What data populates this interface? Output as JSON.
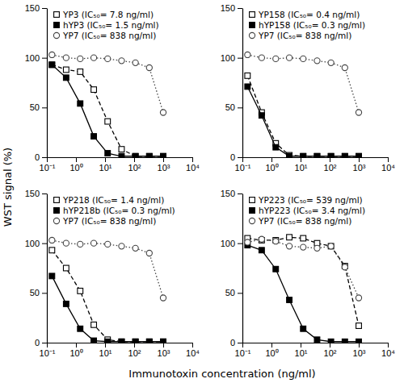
{
  "figure": {
    "xlabel": "Immunotoxin concentration (ng/ml)",
    "ylabel": "WST signal (%)"
  },
  "chart_data": [
    {
      "type": "line",
      "log": "x",
      "legend": "top-left",
      "xlim": [
        0.1,
        10000
      ],
      "ylim": [
        0,
        150
      ],
      "xticks": [
        {
          "value": 0.1,
          "label": "10⁻¹"
        },
        {
          "value": 1,
          "label": "10⁰"
        },
        {
          "value": 10,
          "label": "10¹"
        },
        {
          "value": 100,
          "label": "10²"
        },
        {
          "value": 1000,
          "label": "10³"
        },
        {
          "value": 10000,
          "label": "10⁴"
        }
      ],
      "yticks": [
        0,
        50,
        100,
        150
      ],
      "x": [
        0.15,
        0.46,
        1.4,
        4.1,
        12.3,
        37,
        111,
        333,
        1000
      ],
      "series": [
        {
          "name": "YP3 (IC₅₀= 7.8 ng/ml)",
          "color": "#000000",
          "marker": "square-open",
          "line_style": "dashed",
          "values": [
            93,
            88,
            86,
            68,
            36,
            8,
            1,
            1,
            1
          ]
        },
        {
          "name": "hYP3 (IC₅₀= 1.5 ng/ml)",
          "color": "#000000",
          "marker": "square",
          "line_style": "solid",
          "values": [
            93,
            80,
            54,
            21,
            4,
            1,
            1,
            1,
            1
          ]
        },
        {
          "name": "YP7 (IC₅₀= 838 ng/ml)",
          "color": "#444444",
          "marker": "circle-open",
          "line_style": "dotted",
          "values": [
            103,
            100,
            99,
            100,
            99,
            97,
            95,
            90,
            45
          ]
        }
      ]
    },
    {
      "type": "line",
      "log": "x",
      "legend": "top-left",
      "xlim": [
        0.1,
        10000
      ],
      "ylim": [
        0,
        150
      ],
      "xticks": [
        {
          "value": 0.1,
          "label": "10⁻¹"
        },
        {
          "value": 1,
          "label": "10⁰"
        },
        {
          "value": 10,
          "label": "10¹"
        },
        {
          "value": 100,
          "label": "10²"
        },
        {
          "value": 1000,
          "label": "10³"
        },
        {
          "value": 10000,
          "label": "10⁴"
        }
      ],
      "yticks": [
        0,
        50,
        100,
        150
      ],
      "x": [
        0.15,
        0.46,
        1.4,
        4.1,
        12.3,
        37,
        111,
        333,
        1000
      ],
      "series": [
        {
          "name": "YP158 (IC₅₀= 0.4 ng/ml)",
          "color": "#000000",
          "marker": "square-open",
          "line_style": "dashed",
          "values": [
            82,
            45,
            14,
            2,
            1,
            1,
            1,
            1,
            1
          ]
        },
        {
          "name": "hYP158 (IC₅₀= 0.3 ng/ml)",
          "color": "#000000",
          "marker": "square",
          "line_style": "solid",
          "values": [
            71,
            42,
            10,
            1,
            1,
            1,
            1,
            1,
            1
          ]
        },
        {
          "name": "YP7 (IC₅₀= 838 ng/ml)",
          "color": "#444444",
          "marker": "circle-open",
          "line_style": "dotted",
          "values": [
            103,
            100,
            99,
            100,
            99,
            97,
            95,
            90,
            45
          ]
        }
      ]
    },
    {
      "type": "line",
      "log": "x",
      "legend": "top-left",
      "xlim": [
        0.1,
        10000
      ],
      "ylim": [
        0,
        150
      ],
      "xticks": [
        {
          "value": 0.1,
          "label": "10⁻¹"
        },
        {
          "value": 1,
          "label": "10⁰"
        },
        {
          "value": 10,
          "label": "10¹"
        },
        {
          "value": 100,
          "label": "10²"
        },
        {
          "value": 1000,
          "label": "10³"
        },
        {
          "value": 10000,
          "label": "10⁴"
        }
      ],
      "yticks": [
        0,
        50,
        100,
        150
      ],
      "x": [
        0.15,
        0.46,
        1.4,
        4.1,
        12.3,
        37,
        111,
        333,
        1000
      ],
      "series": [
        {
          "name": "YP218 (IC₅₀= 1.4 ng/ml)",
          "color": "#000000",
          "marker": "square-open",
          "line_style": "dashed",
          "values": [
            93,
            75,
            52,
            18,
            3,
            1,
            1,
            1,
            1
          ]
        },
        {
          "name": "hYP218b (IC₅₀= 0.3 ng/ml)",
          "color": "#000000",
          "marker": "square",
          "line_style": "solid",
          "values": [
            67,
            39,
            14,
            2,
            1,
            1,
            1,
            1,
            1
          ]
        },
        {
          "name": "YP7 (IC₅₀= 838 ng/ml)",
          "color": "#444444",
          "marker": "circle-open",
          "line_style": "dotted",
          "values": [
            103,
            100,
            99,
            100,
            99,
            97,
            95,
            90,
            45
          ]
        }
      ]
    },
    {
      "type": "line",
      "log": "x",
      "legend": "top-left",
      "xlim": [
        0.1,
        10000
      ],
      "ylim": [
        0,
        150
      ],
      "xticks": [
        {
          "value": 0.1,
          "label": "10⁻¹"
        },
        {
          "value": 1,
          "label": "10⁰"
        },
        {
          "value": 10,
          "label": "10¹"
        },
        {
          "value": 100,
          "label": "10²"
        },
        {
          "value": 1000,
          "label": "10³"
        },
        {
          "value": 10000,
          "label": "10⁴"
        }
      ],
      "yticks": [
        0,
        50,
        100,
        150
      ],
      "x": [
        0.15,
        0.46,
        1.4,
        4.1,
        12.3,
        37,
        111,
        333,
        1000
      ],
      "series": [
        {
          "name": "YP223 (IC₅₀= 539 ng/ml)",
          "color": "#000000",
          "marker": "square-open",
          "line_style": "dashed",
          "values": [
            105,
            103,
            103,
            106,
            105,
            100,
            97,
            77,
            17
          ]
        },
        {
          "name": "hYP223 (IC₅₀= 3.4 ng/ml)",
          "color": "#000000",
          "marker": "square",
          "line_style": "solid",
          "values": [
            98,
            93,
            74,
            43,
            14,
            3,
            1,
            1,
            1
          ]
        },
        {
          "name": "YP7 (IC₅₀= 838 ng/ml)",
          "color": "#444444",
          "marker": "circle-open",
          "line_style": "dotted",
          "values": [
            101,
            104,
            102,
            97,
            96,
            95,
            97,
            76,
            45
          ]
        }
      ]
    }
  ]
}
